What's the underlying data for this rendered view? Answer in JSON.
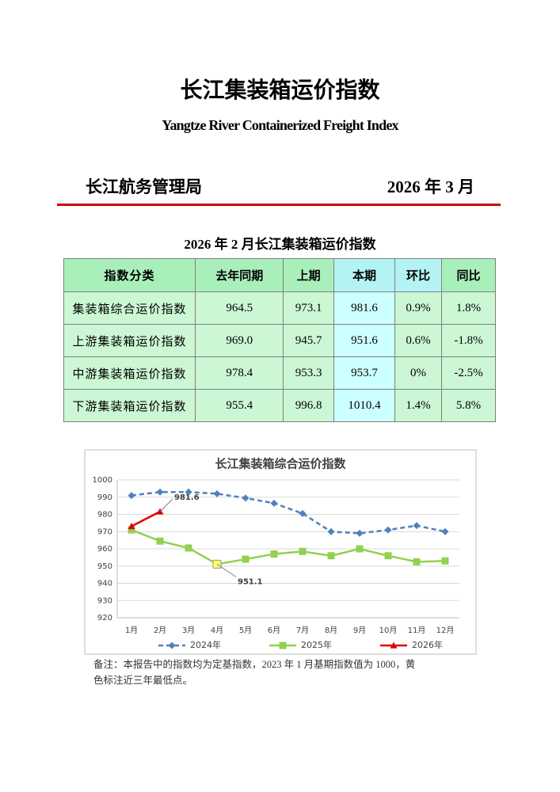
{
  "header": {
    "title": "长江集装箱运价指数",
    "subtitle": "Yangtze River Containerized Freight Index",
    "issuer": "长江航务管理局",
    "date": "2026 年 3 月"
  },
  "table": {
    "title": "2026 年 2 月长江集装箱运价指数",
    "columns": [
      "指数分类",
      "去年同期",
      "上期",
      "本期",
      "环比",
      "同比"
    ],
    "rows": [
      [
        "集装箱综合运价指数",
        "964.5",
        "973.1",
        "981.6",
        "0.9%",
        "1.8%"
      ],
      [
        "上游集装箱运价指数",
        "969.0",
        "945.7",
        "951.6",
        "0.6%",
        "-1.8%"
      ],
      [
        "中游集装箱运价指数",
        "978.4",
        "953.3",
        "953.7",
        "0%",
        "-2.5%"
      ],
      [
        "下游集装箱运价指数",
        "955.4",
        "996.8",
        "1010.4",
        "1.4%",
        "5.8%"
      ]
    ]
  },
  "chart_data": {
    "type": "line",
    "title": "长江集装箱综合运价指数",
    "categories": [
      "1月",
      "2月",
      "3月",
      "4月",
      "5月",
      "6月",
      "7月",
      "8月",
      "9月",
      "10月",
      "11月",
      "12月"
    ],
    "series": [
      {
        "name": "2024年",
        "color": "#4f81bd",
        "dashed": true,
        "marker": "diamond",
        "values": [
          991,
          993,
          993,
          992,
          989.5,
          986.5,
          980.5,
          970,
          969,
          971,
          973.5,
          970
        ]
      },
      {
        "name": "2025年",
        "color": "#92d050",
        "dashed": false,
        "marker": "square",
        "values": [
          971,
          964.5,
          960.5,
          951.1,
          954,
          957,
          958.5,
          956,
          960,
          956,
          952.5,
          953
        ]
      },
      {
        "name": "2026年",
        "color": "#e00000",
        "dashed": false,
        "marker": "triangle",
        "values": [
          973.1,
          981.6,
          null,
          null,
          null,
          null,
          null,
          null,
          null,
          null,
          null,
          null
        ]
      }
    ],
    "annotations": [
      {
        "series": 2,
        "index": 1
      },
      {
        "series": 1,
        "index": 3,
        "marker_color": "#ffff66"
      }
    ],
    "ylim": [
      920,
      1000
    ],
    "yticks": [
      920,
      930,
      940,
      950,
      960,
      970,
      980,
      990,
      1000
    ],
    "grid": true,
    "legend": "bottom"
  },
  "note": [
    "备注：本报告中的指数均为定基指数，2023 年 1 月基期指数值为 1000，黄",
    "色标注近三年最低点。"
  ]
}
